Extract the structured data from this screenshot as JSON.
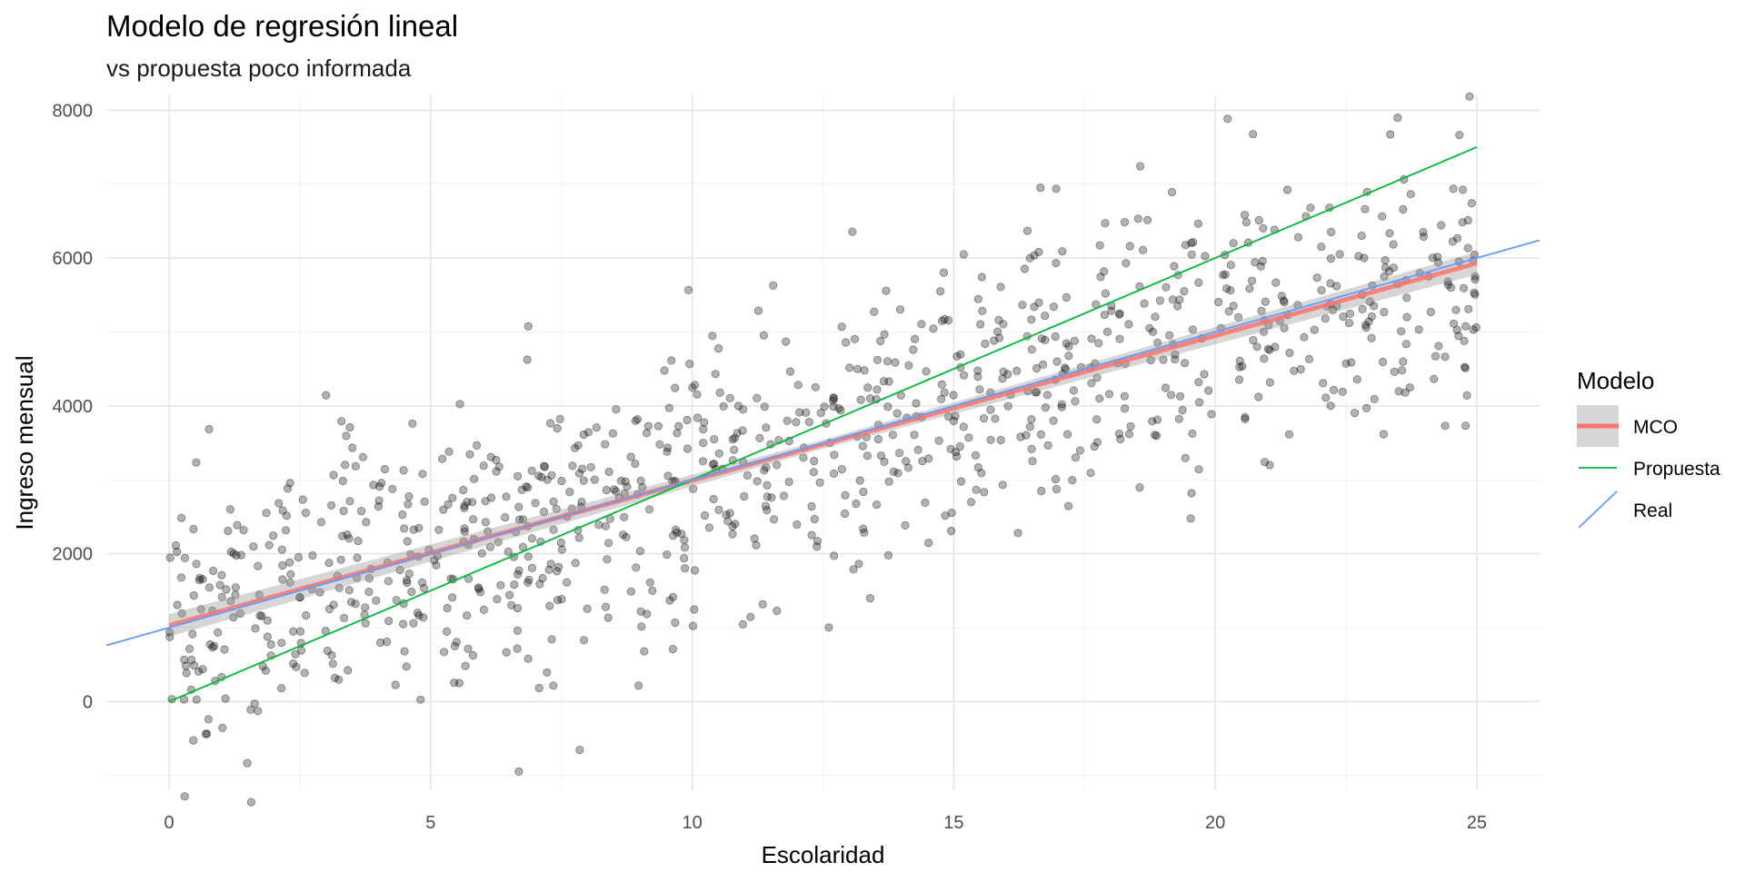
{
  "chart_data": {
    "type": "scatter",
    "title": "Modelo de regresión lineal",
    "subtitle": "vs propuesta poco informada",
    "xlabel": "Escolaridad",
    "ylabel": "Ingreso mensual",
    "xlim": [
      -1.2,
      26.2
    ],
    "ylim": [
      -1200,
      8200
    ],
    "x_ticks": [
      0,
      5,
      10,
      15,
      20,
      25
    ],
    "y_ticks": [
      0,
      2000,
      4000,
      6000,
      8000
    ],
    "grid": true,
    "legend": {
      "title": "Modelo",
      "position": "right",
      "entries": [
        {
          "label": "MCO",
          "color": "#F8766D",
          "style": "line-with-band"
        },
        {
          "label": "Propuesta",
          "color": "#00BA38",
          "style": "line"
        },
        {
          "label": "Real",
          "color": "#619CFF",
          "style": "diagonal-line"
        }
      ]
    },
    "points": {
      "color": "#000000",
      "opacity": 0.3,
      "n": 1000,
      "x_range": [
        0,
        25
      ],
      "noise_sd": 1000,
      "true_intercept": 1000,
      "true_slope": 200
    },
    "lines": [
      {
        "name": "MCO",
        "intercept": 1030,
        "slope": 196,
        "x_range": [
          0,
          25
        ],
        "color": "#F8766D",
        "se_band": true
      },
      {
        "name": "Propuesta",
        "intercept": 0,
        "slope": 300,
        "x_range": [
          0,
          25
        ],
        "color": "#00BA38"
      },
      {
        "name": "Real",
        "intercept": 1000,
        "slope": 200,
        "x_range": [
          -1.2,
          26.2
        ],
        "color": "#619CFF"
      }
    ]
  }
}
